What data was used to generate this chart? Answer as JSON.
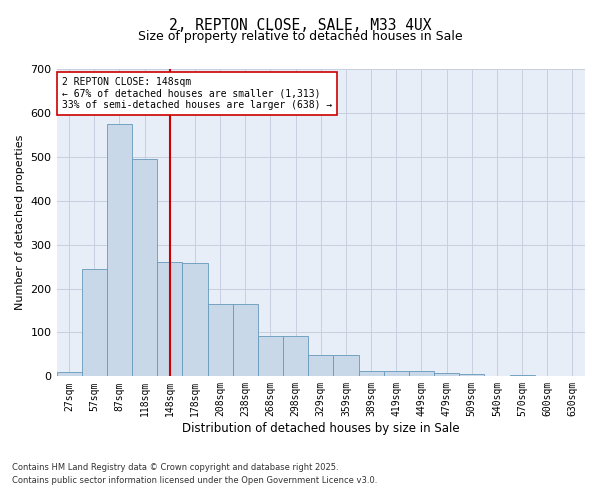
{
  "title1": "2, REPTON CLOSE, SALE, M33 4UX",
  "title2": "Size of property relative to detached houses in Sale",
  "xlabel": "Distribution of detached houses by size in Sale",
  "ylabel": "Number of detached properties",
  "categories": [
    "27sqm",
    "57sqm",
    "87sqm",
    "118sqm",
    "148sqm",
    "178sqm",
    "208sqm",
    "238sqm",
    "268sqm",
    "298sqm",
    "329sqm",
    "359sqm",
    "389sqm",
    "419sqm",
    "449sqm",
    "479sqm",
    "509sqm",
    "540sqm",
    "570sqm",
    "600sqm",
    "630sqm"
  ],
  "values": [
    10,
    245,
    575,
    495,
    260,
    258,
    165,
    165,
    93,
    92,
    48,
    48,
    13,
    12,
    12,
    7,
    5,
    1,
    4,
    1,
    0
  ],
  "bar_color": "#c8d8e8",
  "bar_edge_color": "#6699bb",
  "vline_x": 4,
  "vline_color": "#cc0000",
  "ylim": [
    0,
    700
  ],
  "yticks": [
    0,
    100,
    200,
    300,
    400,
    500,
    600,
    700
  ],
  "annotation_title": "2 REPTON CLOSE: 148sqm",
  "annotation_line1": "← 67% of detached houses are smaller (1,313)",
  "annotation_line2": "33% of semi-detached houses are larger (638) →",
  "footnote1": "Contains HM Land Registry data © Crown copyright and database right 2025.",
  "footnote2": "Contains public sector information licensed under the Open Government Licence v3.0.",
  "bg_color": "#e8eef8",
  "grid_color": "#c8d0e0",
  "fig_width": 6.0,
  "fig_height": 5.0
}
